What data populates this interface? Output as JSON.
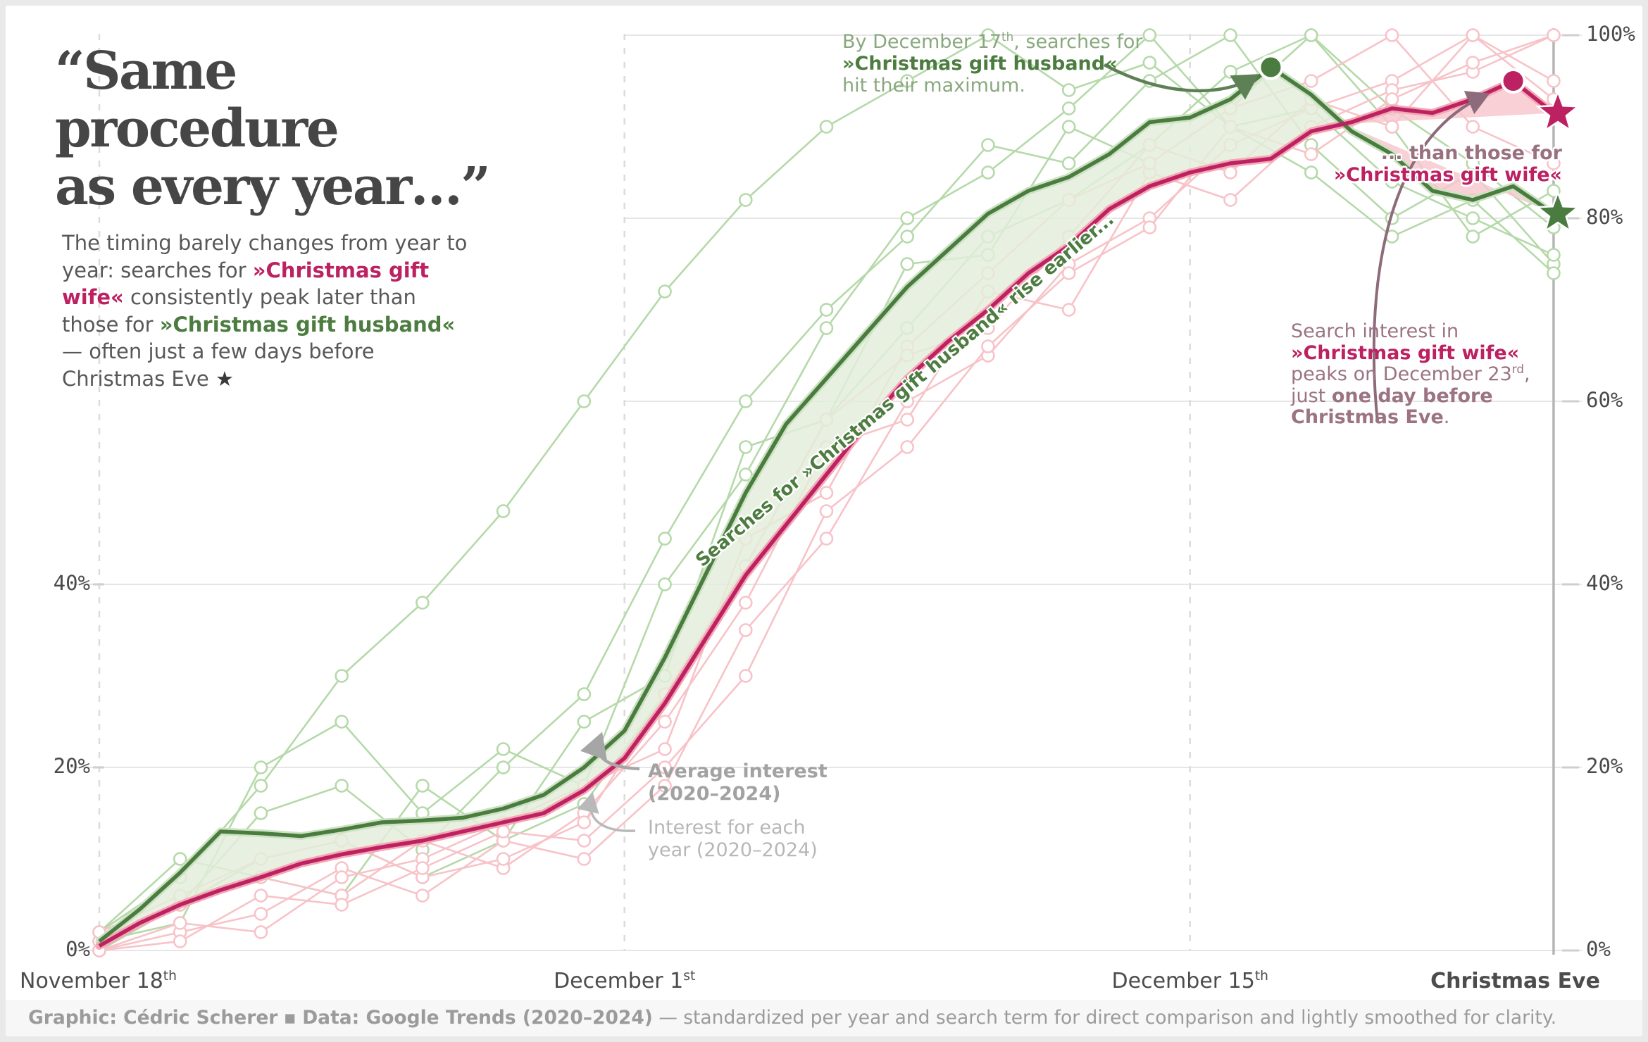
{
  "title": {
    "line1": "“Same procedure",
    "line2": "as every year…”"
  },
  "intro": {
    "segments": [
      {
        "t": "The timing barely changes from year to year: searches for "
      },
      {
        "t": "»Christmas gift wife«",
        "s": "wife-bold"
      },
      {
        "t": " consistently peak later than those for "
      },
      {
        "t": "»Christmas gift husband«",
        "s": "husband-bold"
      },
      {
        "t": " — often just a few days before Christmas Eve "
      },
      {
        "t": "★",
        "s": "star-glyph"
      }
    ]
  },
  "annotations": {
    "husband_max": {
      "segments": [
        {
          "t": "By December 17"
        },
        {
          "t": "th",
          "s": "sup"
        },
        {
          "t": ", searches for\n"
        },
        {
          "t": "»Christmas gift husband«",
          "s": "husband-bold"
        },
        {
          "t": "\nhit their maximum."
        }
      ]
    },
    "wife_vs": {
      "segments": [
        {
          "t": "... than those for\n",
          "s": "mauve-bold"
        },
        {
          "t": "»Christmas gift wife«",
          "s": "wife-bold"
        }
      ]
    },
    "wife_peak": {
      "segments": [
        {
          "t": "Search interest in\n"
        },
        {
          "t": "»Christmas gift wife«",
          "s": "wife-bold"
        },
        {
          "t": "\npeaks on December 23"
        },
        {
          "t": "rd",
          "s": "sup"
        },
        {
          "t": ",\njust "
        },
        {
          "t": "one day before",
          "s": "bold"
        },
        {
          "t": "\n"
        },
        {
          "t": "Christmas Eve",
          "s": "bold"
        },
        {
          "t": "."
        }
      ]
    },
    "average": {
      "segments": [
        {
          "t": "Average interest\n(2020–2024)"
        }
      ]
    },
    "each_year": {
      "segments": [
        {
          "t": "Interest for each\nyear (2020–2024)"
        }
      ]
    },
    "band": {
      "segments": [
        {
          "t": "Searches for »Christmas gift husband« rise earlier..."
        }
      ]
    }
  },
  "footer": {
    "segments": [
      {
        "t": "Graphic: Cédric Scherer",
        "s": "bold"
      },
      {
        "t": "  ▪  "
      },
      {
        "t": "Data: Google Trends (2020–2024)",
        "s": "bold"
      },
      {
        "t": " — standardized per year and search term for direct comparison and lightly smoothed for clarity."
      }
    ]
  },
  "colors": {
    "husband_line": "#4a7c3f",
    "husband_halo": "#cde2c3",
    "husband_light": "#b5d9a9",
    "husband_fill": "#e3eedb",
    "wife_line": "#bc2161",
    "wife_halo": "#f4a7b4",
    "wife_light": "#f7c3c8",
    "wife_fill": "#f7c6cd",
    "grid": "#e6e6e6",
    "grid_dashed": "#dcdcdc",
    "axis_line": "#b5b5b5",
    "tick": "#cfcfcf",
    "arrow_green": "#5d8054",
    "arrow_mauve": "#8d6b7a",
    "arrow_gray": "#a6a6a6",
    "arrow_lightgray": "#b9b9b9"
  },
  "chart_data": {
    "type": "line",
    "x_unit": "days since November 18 (daily, through December 24 / Christmas Eve)",
    "ylabel": "standardized search interest (%)",
    "ylim": [
      0,
      100
    ],
    "grid": "horizontal solid at 0/20/40/60/80/100%, dashed vertical at Nov 18, Dec 1, Dec 15; solid vertical axis at Christmas Eve",
    "legend_position": "annotated inline",
    "x_ticks": [
      {
        "day": 0,
        "label": "November 18",
        "sup": "th",
        "align": "left",
        "bold": false
      },
      {
        "day": 13,
        "label": "December 1",
        "sup": "st",
        "align": "center",
        "bold": false
      },
      {
        "day": 27,
        "label": "December 15",
        "sup": "th",
        "align": "center",
        "bold": false
      },
      {
        "day": 36,
        "label": "Christmas Eve",
        "sup": "",
        "align": "right",
        "bold": true
      }
    ],
    "y_ticks_left": [
      40,
      20,
      0
    ],
    "y_ticks_right": [
      100,
      80,
      60,
      40,
      20,
      0
    ],
    "series": [
      {
        "name": "Christmas gift husband — average 2020–2024",
        "step": 1,
        "values": [
          1,
          4.5,
          8.5,
          13,
          12.8,
          12.5,
          13.2,
          14,
          14.2,
          14.5,
          15.5,
          17,
          20,
          24,
          32,
          41,
          50,
          57.5,
          62.5,
          67.5,
          72.5,
          76.5,
          80.5,
          83,
          84.5,
          87,
          90.5,
          91,
          93,
          96.5,
          93.5,
          89.5,
          87,
          83,
          82,
          83.5,
          80.5
        ]
      },
      {
        "name": "Christmas gift wife — average 2020–2024",
        "step": 1,
        "values": [
          0.5,
          3,
          5,
          6.6,
          8,
          9.5,
          10.5,
          11.3,
          12,
          13,
          14,
          15,
          17.5,
          21,
          27,
          34,
          41,
          46.5,
          52,
          57.5,
          62.5,
          66.5,
          70,
          74,
          77,
          81,
          83.5,
          85,
          86,
          86.5,
          89.5,
          90.5,
          92,
          91.5,
          93,
          95,
          91.5
        ]
      }
    ],
    "yearly_series_husband": [
      {
        "name": "husband year line 1",
        "step": 2,
        "values": [
          0,
          5,
          15,
          18,
          11,
          20,
          28,
          45,
          60,
          70,
          78,
          88,
          86,
          95,
          100,
          88,
          80,
          85,
          75
        ]
      },
      {
        "name": "husband year line 2",
        "step": 2,
        "values": [
          2,
          10,
          8,
          6,
          18,
          12,
          25,
          30,
          55,
          58,
          75,
          76,
          90,
          86,
          92,
          100,
          90,
          78,
          83
        ]
      },
      {
        "name": "husband year line 3",
        "step": 2,
        "values": [
          1,
          3,
          20,
          25,
          15,
          22,
          18,
          40,
          52,
          68,
          80,
          85,
          92,
          100,
          90,
          92,
          84,
          80,
          76
        ]
      },
      {
        "name": "husband year line 4",
        "step": 2,
        "values": [
          2,
          8,
          18,
          30,
          38,
          48,
          60,
          72,
          82,
          90,
          95,
          100,
          94,
          97,
          90,
          85,
          78,
          82,
          74
        ]
      },
      {
        "name": "husband year line 5",
        "step": 2,
        "values": [
          0,
          5,
          10,
          12,
          8,
          12,
          16,
          28,
          42,
          58,
          68,
          78,
          82,
          88,
          96,
          100,
          92,
          86,
          79
        ]
      }
    ],
    "yearly_series_wife": [
      {
        "name": "wife year line 1",
        "step": 2,
        "values": [
          0,
          2,
          4,
          9,
          6,
          12,
          10,
          18,
          35,
          45,
          60,
          65,
          75,
          80,
          88,
          92,
          95,
          100,
          93
        ]
      },
      {
        "name": "wife year line 2",
        "step": 2,
        "values": [
          1,
          5,
          8,
          6,
          12,
          9,
          15,
          25,
          38,
          55,
          58,
          72,
          70,
          85,
          82,
          90,
          94,
          96,
          100
        ]
      },
      {
        "name": "wife year line 3",
        "step": 2,
        "values": [
          0,
          3,
          2,
          8,
          10,
          14,
          18,
          22,
          45,
          50,
          66,
          74,
          82,
          86,
          92,
          95,
          100,
          90,
          86
        ]
      },
      {
        "name": "wife year line 4",
        "step": 2,
        "values": [
          2,
          6,
          10,
          12,
          8,
          10,
          14,
          28,
          42,
          58,
          65,
          68,
          78,
          88,
          85,
          93,
          90,
          100,
          95
        ]
      },
      {
        "name": "wife year line 5",
        "step": 2,
        "values": [
          0,
          1,
          6,
          5,
          9,
          13,
          12,
          20,
          30,
          48,
          55,
          66,
          74,
          79,
          90,
          87,
          93,
          97,
          100
        ]
      }
    ],
    "peak_markers": [
      {
        "series": "husband",
        "day": 29,
        "date": "December 17",
        "value": 96.5
      },
      {
        "series": "wife",
        "day": 35,
        "date": "December 23",
        "value": 95
      }
    ],
    "end_markers_stars": [
      {
        "series": "wife",
        "day": 36,
        "date": "Christmas Eve",
        "value": 91.5
      },
      {
        "series": "husband",
        "day": 36,
        "date": "Christmas Eve",
        "value": 80.5
      }
    ]
  }
}
